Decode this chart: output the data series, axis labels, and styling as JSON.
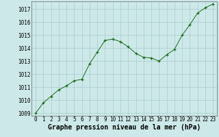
{
  "x": [
    0,
    1,
    2,
    3,
    4,
    5,
    6,
    7,
    8,
    9,
    10,
    11,
    12,
    13,
    14,
    15,
    16,
    17,
    18,
    19,
    20,
    21,
    22,
    23
  ],
  "y": [
    1009.0,
    1009.8,
    1010.3,
    1010.8,
    1011.1,
    1011.5,
    1011.6,
    1012.8,
    1013.7,
    1014.6,
    1014.7,
    1014.5,
    1014.1,
    1013.6,
    1013.3,
    1013.25,
    1013.0,
    1013.5,
    1013.9,
    1015.0,
    1015.8,
    1016.7,
    1017.1,
    1017.4
  ],
  "line_color": "#1a6b1a",
  "marker_color": "#1a6b1a",
  "bg_color": "#cce8e8",
  "grid_color": "#aacccc",
  "xlabel": "Graphe pression niveau de la mer (hPa)",
  "xlabel_fontsize": 7,
  "ylim": [
    1008.8,
    1017.6
  ],
  "yticks": [
    1009,
    1010,
    1011,
    1012,
    1013,
    1014,
    1015,
    1016,
    1017
  ],
  "xticks": [
    0,
    1,
    2,
    3,
    4,
    5,
    6,
    7,
    8,
    9,
    10,
    11,
    12,
    13,
    14,
    15,
    16,
    17,
    18,
    19,
    20,
    21,
    22,
    23
  ],
  "tick_fontsize": 5.5
}
